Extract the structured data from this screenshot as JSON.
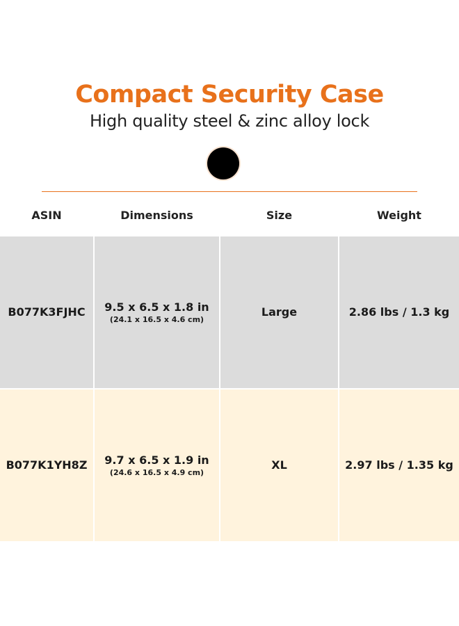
{
  "colors": {
    "accent": "#e8711b",
    "swatch": "#000000",
    "row_gray": "#dcdcdc",
    "row_cream": "#fff3dd"
  },
  "heading": {
    "title": "Compact Security Case",
    "subtitle": "High quality steel & zinc alloy lock"
  },
  "table": {
    "headers": [
      "ASIN",
      "Dimensions",
      "Size",
      "Weight"
    ],
    "rows": [
      {
        "asin": "B077K3FJHC",
        "dimensions": "9.5 x 6.5 x 1.8 in",
        "dimensions_metric": "(24.1 x 16.5 x 4.6 cm)",
        "size": "Large",
        "weight": "2.86 lbs / 1.3 kg"
      },
      {
        "asin": "B077K1YH8Z",
        "dimensions": "9.7 x 6.5 x 1.9 in",
        "dimensions_metric": "(24.6 x 16.5 x 4.9 cm)",
        "size": "XL",
        "weight": "2.97 lbs / 1.35 kg"
      }
    ]
  }
}
